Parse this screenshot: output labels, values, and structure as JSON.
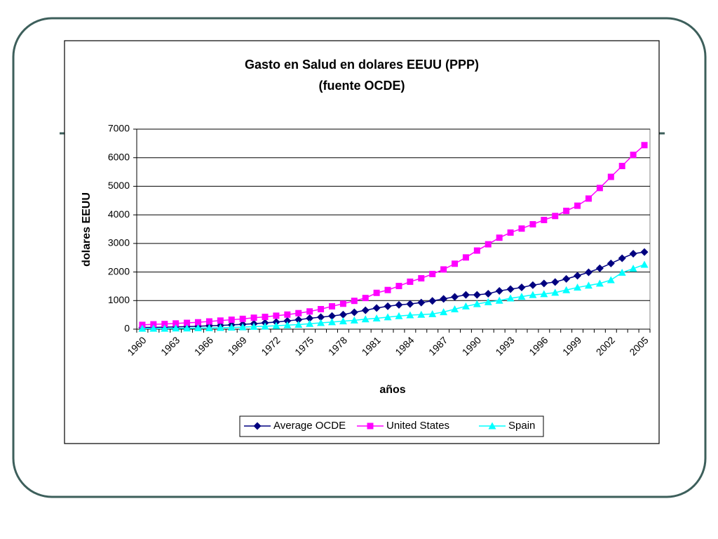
{
  "chart_data": {
    "type": "line",
    "title": "Gasto en Salud en dolares EEUU (PPP)",
    "subtitle": "(fuente OCDE)",
    "x_label": "años",
    "y_label": "dolares EEUU",
    "categories": [
      "1960",
      null,
      null,
      "1963",
      null,
      null,
      "1966",
      null,
      null,
      "1969",
      null,
      null,
      "1972",
      null,
      null,
      "1975",
      null,
      null,
      "1978",
      null,
      null,
      "1981",
      null,
      null,
      "1984",
      null,
      null,
      "1987",
      null,
      null,
      "1990",
      null,
      null,
      "1993",
      null,
      null,
      "1996",
      null,
      null,
      "1999",
      null,
      null,
      "2002",
      null,
      null,
      "2005"
    ],
    "series": [
      {
        "name": "Average OCDE",
        "color": "#000080",
        "marker": "diamond",
        "values": [
          60,
          60,
          70,
          80,
          90,
          100,
          120,
          130,
          150,
          170,
          190,
          220,
          250,
          290,
          330,
          380,
          420,
          460,
          510,
          590,
          660,
          740,
          800,
          850,
          880,
          930,
          990,
          1060,
          1130,
          1200,
          1200,
          1240,
          1340,
          1400,
          1460,
          1540,
          1600,
          1650,
          1760,
          1870,
          1990,
          2130,
          2300,
          2480,
          2640,
          2700
        ]
      },
      {
        "name": "United States",
        "color": "#ff00ff",
        "marker": "square",
        "values": [
          150,
          170,
          180,
          200,
          220,
          240,
          270,
          300,
          330,
          360,
          400,
          430,
          470,
          510,
          560,
          620,
          700,
          800,
          890,
          990,
          1090,
          1270,
          1370,
          1510,
          1660,
          1780,
          1930,
          2090,
          2290,
          2510,
          2750,
          2970,
          3200,
          3380,
          3520,
          3670,
          3820,
          3960,
          4140,
          4320,
          4570,
          4940,
          5330,
          5710,
          6100,
          6440
        ]
      },
      {
        "name": "Spain",
        "color": "#00ffff",
        "marker": "triangle",
        "values": [
          20,
          20,
          20,
          30,
          30,
          40,
          40,
          50,
          60,
          70,
          90,
          100,
          120,
          140,
          160,
          190,
          220,
          250,
          280,
          310,
          350,
          380,
          420,
          460,
          490,
          510,
          530,
          600,
          700,
          800,
          880,
          950,
          1000,
          1080,
          1140,
          1200,
          1230,
          1280,
          1370,
          1460,
          1530,
          1600,
          1720,
          1980,
          2120,
          2260
        ]
      }
    ],
    "ylim": [
      0,
      7000
    ],
    "yticks": [
      0,
      1000,
      2000,
      3000,
      4000,
      5000,
      6000,
      7000
    ],
    "grid": true,
    "legend": "bottom"
  }
}
